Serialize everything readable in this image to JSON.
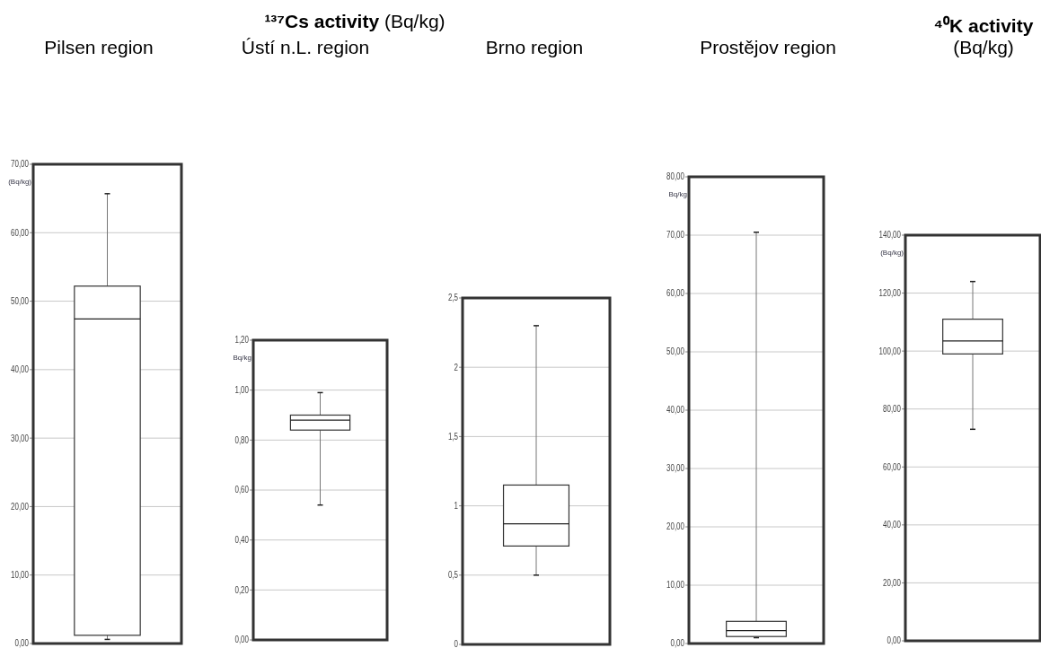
{
  "chart_data": [
    {
      "type": "box",
      "title": "Pilsen region",
      "ylabel": "(Bq/kg)",
      "categories": [
        null
      ],
      "boxes": [
        {
          "low": 0.6,
          "q1": 1.2,
          "median": 47.4,
          "q3": 52.2,
          "high": 65.7
        }
      ],
      "ylim": [
        0,
        70
      ],
      "yticks": [
        {
          "value": 0,
          "label": "0,00"
        },
        {
          "value": 10,
          "label": "10,00"
        },
        {
          "value": 20,
          "label": "20,00"
        },
        {
          "value": 30,
          "label": "30,00"
        },
        {
          "value": 40,
          "label": "40,00"
        },
        {
          "value": 50,
          "label": "50,00"
        },
        {
          "value": 60,
          "label": "60,00"
        },
        {
          "value": 70,
          "label": "70,00"
        }
      ],
      "grid": "y"
    },
    {
      "type": "box",
      "title": "¹³⁷Cs activity (Bq/kg)",
      "subtitle": "Ústí n.L. region",
      "ylabel": "Bq/kg",
      "categories": [
        null
      ],
      "boxes": [
        {
          "low": 0.54,
          "q1": 0.84,
          "median": 0.88,
          "q3": 0.9,
          "high": 0.99
        }
      ],
      "ylim": [
        0,
        1.2
      ],
      "yticks": [
        {
          "value": 0,
          "label": "0,00"
        },
        {
          "value": 0.2,
          "label": "0,20"
        },
        {
          "value": 0.4,
          "label": "0,40"
        },
        {
          "value": 0.6,
          "label": "0,60"
        },
        {
          "value": 0.8,
          "label": "0,80"
        },
        {
          "value": 1,
          "label": "1,00"
        },
        {
          "value": 1.2,
          "label": "1,20"
        }
      ],
      "grid": "y"
    },
    {
      "type": "box",
      "title": "Brno region",
      "categories": [
        null
      ],
      "boxes": [
        {
          "low": 0.5,
          "q1": 0.71,
          "median": 0.87,
          "q3": 1.15,
          "high": 2.3
        }
      ],
      "ylim": [
        0,
        2.5
      ],
      "yticks": [
        0,
        {
          "value": 0.5,
          "label": "0,5"
        },
        1,
        {
          "value": 1.5,
          "label": "1,5"
        },
        2,
        {
          "value": 2.5,
          "label": "2,5"
        }
      ],
      "grid": "y"
    },
    {
      "type": "box",
      "title": "Prostějov region",
      "ylabel": "Bq/kg",
      "categories": [
        null
      ],
      "boxes": [
        {
          "low": 1.0,
          "q1": 1.2,
          "median": 2.2,
          "q3": 3.8,
          "high": 70.5
        }
      ],
      "ylim": [
        0,
        80
      ],
      "yticks": [
        {
          "value": 0,
          "label": "0,00"
        },
        {
          "value": 10,
          "label": "10,00"
        },
        {
          "value": 20,
          "label": "20,00"
        },
        {
          "value": 30,
          "label": "30,00"
        },
        {
          "value": 40,
          "label": "40,00"
        },
        {
          "value": 50,
          "label": "50,00"
        },
        {
          "value": 60,
          "label": "60,00"
        },
        {
          "value": 70,
          "label": "70,00"
        },
        {
          "value": 80,
          "label": "80,00"
        }
      ],
      "grid": "y"
    },
    {
      "type": "box",
      "title": "⁴⁰K activity (Bq/kg)",
      "ylabel": "(Bq/kg)",
      "categories": [
        null
      ],
      "boxes": [
        {
          "low": 73,
          "q1": 99,
          "median": 103.5,
          "q3": 111,
          "high": 124
        }
      ],
      "ylim": [
        0,
        140
      ],
      "yticks": [
        {
          "value": 0,
          "label": "0,00"
        },
        {
          "value": 20,
          "label": "20,00"
        },
        {
          "value": 40,
          "label": "40,00"
        },
        {
          "value": 60,
          "label": "60,00"
        },
        {
          "value": 80,
          "label": "80,00"
        },
        {
          "value": 100,
          "label": "100,00"
        },
        {
          "value": 120,
          "label": "120,00"
        },
        {
          "value": 140,
          "label": "140,00"
        }
      ],
      "grid": "y"
    }
  ]
}
